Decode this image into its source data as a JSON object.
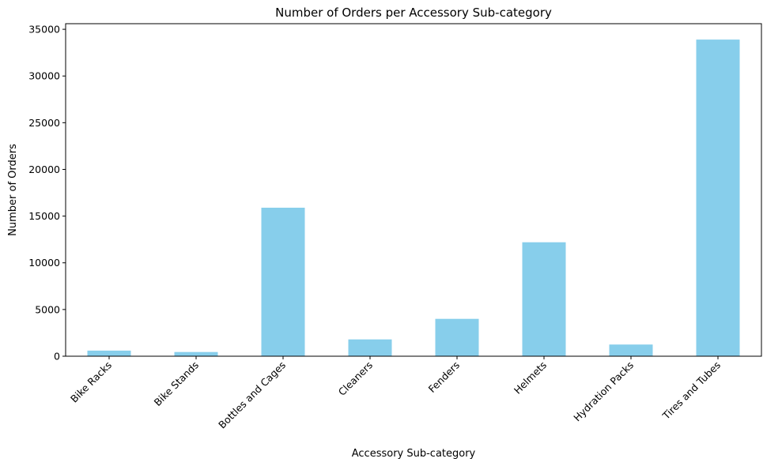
{
  "chart_data": {
    "type": "bar",
    "title": "Number of Orders per Accessory Sub-category",
    "xlabel": "Accessory Sub-category",
    "ylabel": "Number of Orders",
    "categories": [
      "Bike Racks",
      "Bike Stands",
      "Bottles and Cages",
      "Cleaners",
      "Fenders",
      "Helmets",
      "Hydration Packs",
      "Tires and Tubes"
    ],
    "values": [
      600,
      450,
      15900,
      1800,
      4000,
      12200,
      1250,
      33900
    ],
    "ylim": [
      0,
      35600
    ],
    "yticks": [
      0,
      5000,
      10000,
      15000,
      20000,
      25000,
      30000,
      35000
    ],
    "bar_color": "#87ceeb",
    "grid": false,
    "legend": false
  }
}
